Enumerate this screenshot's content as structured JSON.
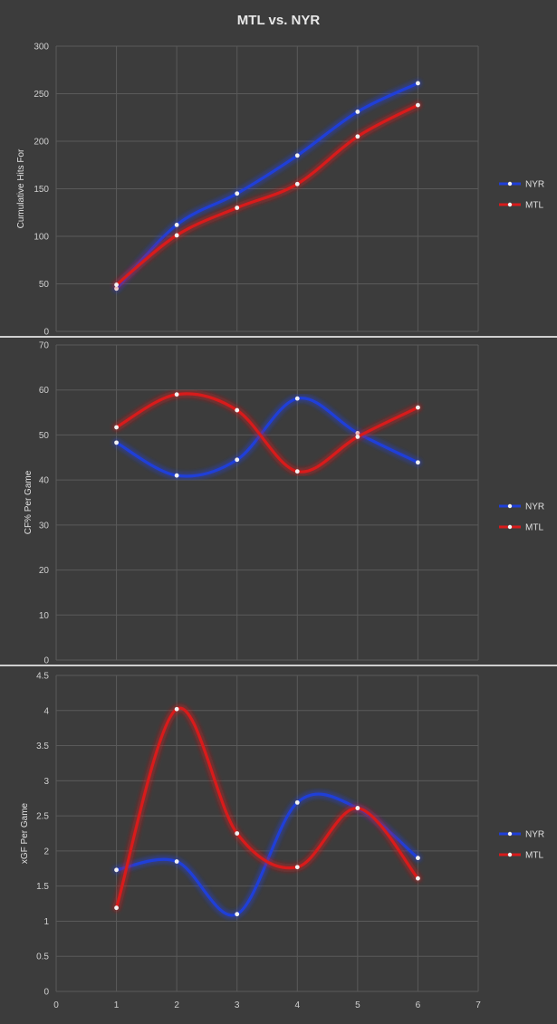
{
  "title": "MTL vs. NYR",
  "colors": {
    "NYR": "#1f3fd8",
    "MTL": "#d81b1b",
    "grid": "#5a5a5a",
    "background": "#3c3c3c",
    "divider": "#cfcfcf"
  },
  "chart_data": [
    {
      "type": "line",
      "title": "MTL vs. NYR",
      "ylabel": "Cumulative Hits For",
      "xlabel": "",
      "x": [
        1,
        2,
        3,
        4,
        5,
        6
      ],
      "xlim": [
        0,
        7
      ],
      "ylim": [
        0,
        300
      ],
      "yticks": [
        0,
        50,
        100,
        150,
        200,
        250,
        300
      ],
      "show_xticks": false,
      "grid": true,
      "legend": "right",
      "series": [
        {
          "name": "NYR",
          "values": [
            45,
            112,
            145,
            185,
            231,
            261
          ]
        },
        {
          "name": "MTL",
          "values": [
            49,
            101,
            130,
            155,
            205,
            238
          ]
        }
      ]
    },
    {
      "type": "line",
      "ylabel": "CF% Per Game",
      "xlabel": "",
      "x": [
        1,
        2,
        3,
        4,
        5,
        6
      ],
      "xlim": [
        0,
        7
      ],
      "ylim": [
        0,
        70
      ],
      "yticks": [
        0,
        10,
        20,
        30,
        40,
        50,
        60,
        70
      ],
      "show_xticks": false,
      "grid": true,
      "legend": "right",
      "series": [
        {
          "name": "NYR",
          "values": [
            48.3,
            41.0,
            44.5,
            58.1,
            50.4,
            43.9
          ]
        },
        {
          "name": "MTL",
          "values": [
            51.7,
            59.0,
            55.5,
            41.9,
            49.6,
            56.1
          ]
        }
      ]
    },
    {
      "type": "line",
      "ylabel": "xGF Per Game",
      "xlabel": "",
      "x": [
        1,
        2,
        3,
        4,
        5,
        6
      ],
      "xlim": [
        0,
        7
      ],
      "ylim": [
        0,
        4.5
      ],
      "yticks": [
        0,
        0.5,
        1,
        1.5,
        2,
        2.5,
        3,
        3.5,
        4,
        4.5
      ],
      "xticks": [
        0,
        1,
        2,
        3,
        4,
        5,
        6,
        7
      ],
      "show_xticks": true,
      "grid": true,
      "legend": "right",
      "series": [
        {
          "name": "NYR",
          "values": [
            1.73,
            1.85,
            1.1,
            2.69,
            2.61,
            1.9
          ]
        },
        {
          "name": "MTL",
          "values": [
            1.19,
            4.02,
            2.25,
            1.77,
            2.61,
            1.61
          ]
        }
      ]
    }
  ]
}
